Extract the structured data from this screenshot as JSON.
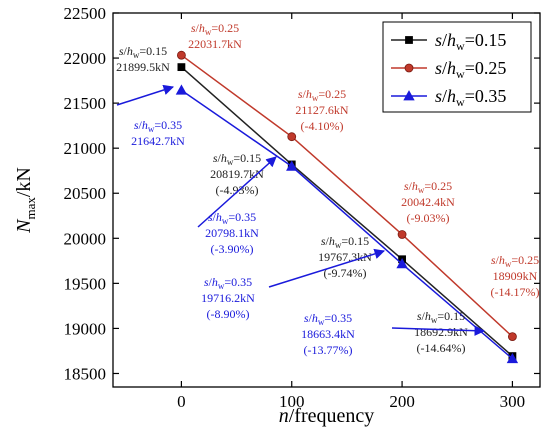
{
  "chart_data": {
    "type": "line",
    "title": "",
    "xlabel": {
      "italic": "n",
      "rest": "/frequency"
    },
    "ylabel": {
      "italic": "N",
      "sub": "max",
      "rest": "/kN"
    },
    "x": [
      0,
      100,
      200,
      300
    ],
    "xticks": [
      0,
      100,
      200,
      300
    ],
    "yticks": [
      18500,
      19000,
      19500,
      20000,
      20500,
      21000,
      21500,
      22000,
      22500
    ],
    "xlim": [
      -62,
      325
    ],
    "ylim": [
      18350,
      22500
    ],
    "grid": false,
    "legend_position": "top-right",
    "series": [
      {
        "name": "s/hw=0.15",
        "label": {
          "s": "s",
          "h": "h",
          "sub": "w",
          "eq": "=0.15"
        },
        "color": "#222222",
        "marker": "square",
        "values": [
          21899.5,
          20819.7,
          19767.3,
          18692.9
        ]
      },
      {
        "name": "s/hw=0.25",
        "label": {
          "s": "s",
          "h": "h",
          "sub": "w",
          "eq": "=0.25"
        },
        "color": "#c0392b",
        "marker": "circle",
        "values": [
          22031.7,
          21127.6,
          20042.4,
          18909.0
        ]
      },
      {
        "name": "s/hw=0.35",
        "label": {
          "s": "s",
          "h": "h",
          "sub": "w",
          "eq": "=0.35"
        },
        "color": "#1a1adb",
        "marker": "triangle",
        "values": [
          21642.7,
          20798.1,
          19716.2,
          18663.4
        ]
      }
    ],
    "annotations": [
      {
        "series": 1,
        "lines": [
          "s/hw=0.25",
          "22031.7kN"
        ]
      },
      {
        "series": 0,
        "lines": [
          "s/hw=0.15",
          "21899.5kN"
        ]
      },
      {
        "series": 2,
        "lines": [
          "s/hw=0.35",
          "21642.7kN"
        ]
      },
      {
        "series": 1,
        "lines": [
          "s/hw=0.25",
          "21127.6kN",
          "(-4.10%)"
        ]
      },
      {
        "series": 0,
        "lines": [
          "s/hw=0.15",
          "20819.7kN",
          "(-4.93%)"
        ]
      },
      {
        "series": 2,
        "lines": [
          "s/hw=0.35",
          "20798.1kN",
          "(-3.90%)"
        ]
      },
      {
        "series": 1,
        "lines": [
          "s/hw=0.25",
          "20042.4kN",
          "(-9.03%)"
        ]
      },
      {
        "series": 0,
        "lines": [
          "s/hw=0.15",
          "19767.3kN",
          "(-9.74%)"
        ]
      },
      {
        "series": 2,
        "lines": [
          "s/hw=0.35",
          "19716.2kN",
          "(-8.90%)"
        ]
      },
      {
        "series": 1,
        "lines": [
          "s/hw=0.25",
          "18909kN",
          "(-14.17%)"
        ]
      },
      {
        "series": 0,
        "lines": [
          "s/hw=0.15",
          "18692.9kN",
          "(-14.64%)"
        ]
      },
      {
        "series": 2,
        "lines": [
          "s/hw=0.35",
          "18663.4kN",
          "(-13.77%)"
        ]
      }
    ]
  }
}
